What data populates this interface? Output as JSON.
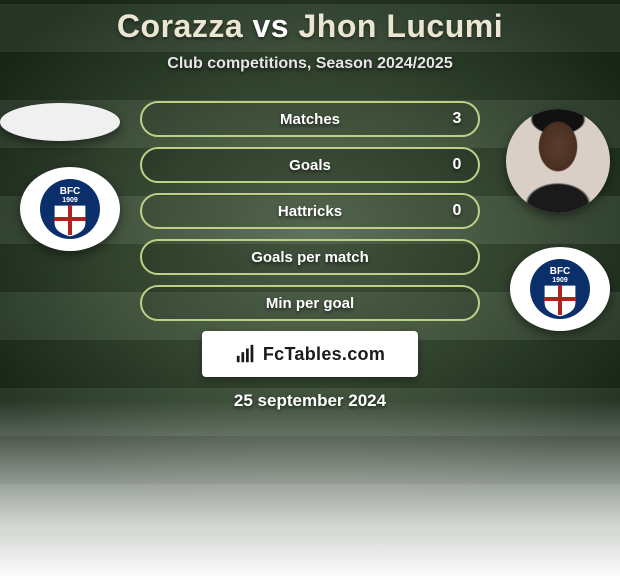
{
  "title_player_a": "Corazza",
  "title_vs": "vs",
  "title_player_b": "Jhon Lucumi",
  "subtitle": "Club competitions, Season 2024/2025",
  "pill_border_color": "#c0cf87",
  "stats": [
    {
      "label": "Matches",
      "value": "3"
    },
    {
      "label": "Goals",
      "value": "0"
    },
    {
      "label": "Hattricks",
      "value": "0"
    },
    {
      "label": "Goals per match",
      "value": ""
    },
    {
      "label": "Min per goal",
      "value": ""
    }
  ],
  "brand": "FcTables.com",
  "date": "25 september 2024",
  "crest": {
    "outer_color": "#0b2f6b",
    "text": "BFC",
    "year": "1909",
    "cross_color": "#b2221f",
    "shield_bg": "#ffffff"
  },
  "background": {
    "type": "stadium-pitch",
    "stripe_colors": [
      "#3f5339",
      "#4a6044"
    ],
    "vignette": true
  }
}
